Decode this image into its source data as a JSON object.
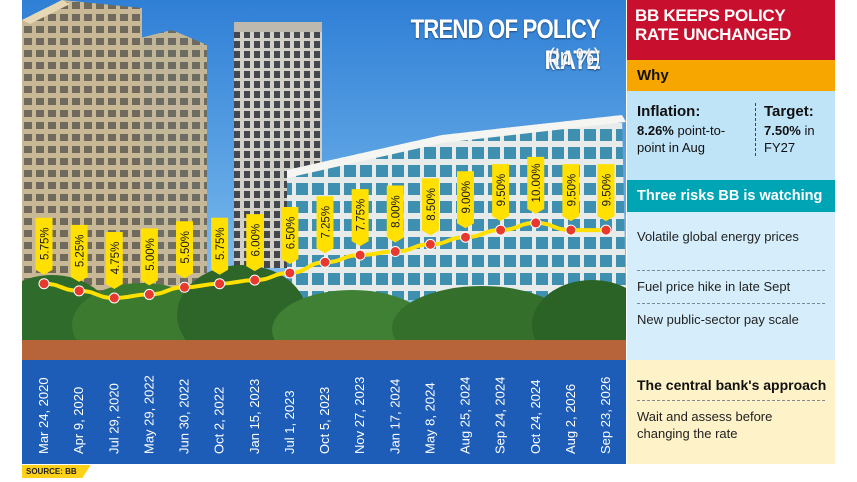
{
  "header": {
    "title": "TREND OF POLICY RATE",
    "unit": "(In %)"
  },
  "source": "SOURCE: BB",
  "chart_data": {
    "type": "line",
    "title": "TREND OF POLICY RATE",
    "subtitle": "(In %)",
    "categories": [
      "Mar 24, 2020",
      "Apr 9, 2020",
      "Jul 29, 2020",
      "May 29, 2022",
      "Jun 30, 2022",
      "Oct 2, 2022",
      "Jan 15, 2023",
      "Jul 1, 2023",
      "Oct 5, 2023",
      "Nov 27, 2023",
      "Jan 17, 2024",
      "May 8, 2024",
      "Aug 25, 2024",
      "Sep 24, 2024",
      "Oct 24, 2024",
      "Aug 2, 2026",
      "Sep 23, 2026"
    ],
    "series": [
      {
        "values": [
          5.75,
          5.25,
          4.75,
          5.0,
          5.5,
          5.75,
          6.0,
          6.5,
          7.25,
          7.75,
          8.0,
          8.5,
          9.0,
          9.5,
          10.0,
          9.5,
          9.5
        ],
        "labels": [
          "5.75%",
          "5.25%",
          "4.75%",
          "5.00%",
          "5.50%",
          "5.75%",
          "6.00%",
          "6.50%",
          "7.25%",
          "7.75%",
          "8.00%",
          "8.50%",
          "9.00%",
          "9.50%",
          "10.00%",
          "9.50%",
          "9.50%"
        ]
      }
    ],
    "colors": {
      "line": "#ffe000",
      "marker": "#e8392f",
      "label_bg": "#ffe000",
      "date_band": "#1d5db8"
    }
  },
  "sidebar": {
    "headline": "BB KEEPS POLICY RATE UNCHANGED",
    "why_label": "Why",
    "inflation": {
      "label": "Inflation:",
      "value": "8.26%",
      "desc": " point-to-point in Aug"
    },
    "target": {
      "label": "Target:",
      "value": "7.50%",
      "desc": " in FY27"
    },
    "risks_title": "Three risks BB is watching",
    "risks": [
      "Volatile global energy prices",
      "Fuel price hike in late Sept",
      "New public-sector pay scale"
    ],
    "approach_title": "The central bank's approach",
    "approach_text": "Wait and assess before changing the rate"
  }
}
